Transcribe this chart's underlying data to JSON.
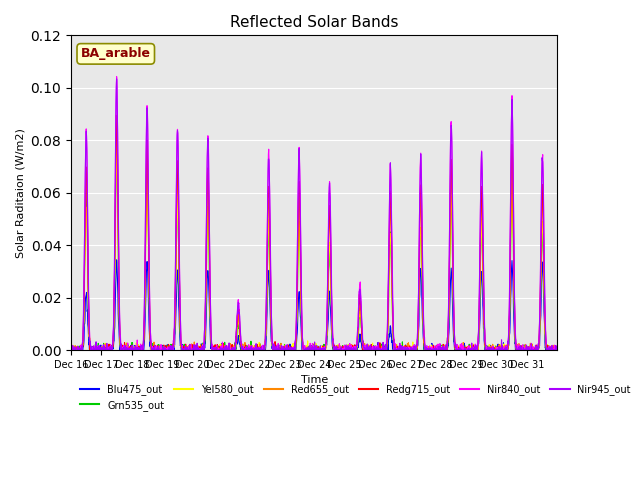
{
  "title": "Reflected Solar Bands",
  "xlabel": "Time",
  "ylabel": "Solar Raditaion (W/m2)",
  "ylim": [
    0,
    0.12
  ],
  "annotation": "BA_arable",
  "bg_color": "#e8e8e8",
  "lines": [
    {
      "label": "Blu475_out",
      "color": "#0000ff"
    },
    {
      "label": "Grn535_out",
      "color": "#00cc00"
    },
    {
      "label": "Yel580_out",
      "color": "#ffff00"
    },
    {
      "label": "Red655_out",
      "color": "#ff8800"
    },
    {
      "label": "Redg715_out",
      "color": "#ff0000"
    },
    {
      "label": "Nir840_out",
      "color": "#ff00ff"
    },
    {
      "label": "Nir945_out",
      "color": "#aa00ff"
    }
  ],
  "xtick_labels": [
    "Dec 16",
    "Dec 17",
    "Dec 18",
    "Dec 19",
    "Dec 20",
    "Dec 21",
    "Dec 22",
    "Dec 23",
    "Dec 24",
    "Dec 25",
    "Dec 26",
    "Dec 27",
    "Dec 28",
    "Dec 29",
    "Dec 30",
    "Dec 31"
  ],
  "num_days": 16,
  "points_per_day": 96,
  "day_peaks_nir840": [
    0.084,
    0.104,
    0.094,
    0.085,
    0.082,
    0.019,
    0.075,
    0.077,
    0.064,
    0.025,
    0.07,
    0.074,
    0.087,
    0.075,
    0.095,
    0.075
  ],
  "day_peaks_nir945": [
    0.083,
    0.103,
    0.093,
    0.084,
    0.081,
    0.018,
    0.074,
    0.076,
    0.063,
    0.024,
    0.069,
    0.073,
    0.086,
    0.074,
    0.094,
    0.074
  ],
  "day_peaks_redg": [
    0.07,
    0.09,
    0.078,
    0.072,
    0.07,
    0.015,
    0.063,
    0.064,
    0.055,
    0.02,
    0.06,
    0.063,
    0.074,
    0.063,
    0.079,
    0.063
  ],
  "day_peaks_red": [
    0.065,
    0.085,
    0.073,
    0.067,
    0.065,
    0.013,
    0.058,
    0.059,
    0.05,
    0.018,
    0.055,
    0.058,
    0.069,
    0.058,
    0.074,
    0.058
  ],
  "day_peaks_yel": [
    0.055,
    0.075,
    0.063,
    0.057,
    0.055,
    0.011,
    0.048,
    0.049,
    0.04,
    0.015,
    0.045,
    0.048,
    0.059,
    0.048,
    0.064,
    0.048
  ],
  "day_peaks_grn": [
    0.06,
    0.073,
    0.073,
    0.055,
    0.053,
    0.01,
    0.046,
    0.047,
    0.038,
    0.014,
    0.043,
    0.046,
    0.057,
    0.046,
    0.062,
    0.046
  ],
  "day_peaks_blu": [
    0.022,
    0.033,
    0.033,
    0.03,
    0.03,
    0.005,
    0.03,
    0.022,
    0.022,
    0.006,
    0.008,
    0.03,
    0.03,
    0.03,
    0.033,
    0.033
  ]
}
